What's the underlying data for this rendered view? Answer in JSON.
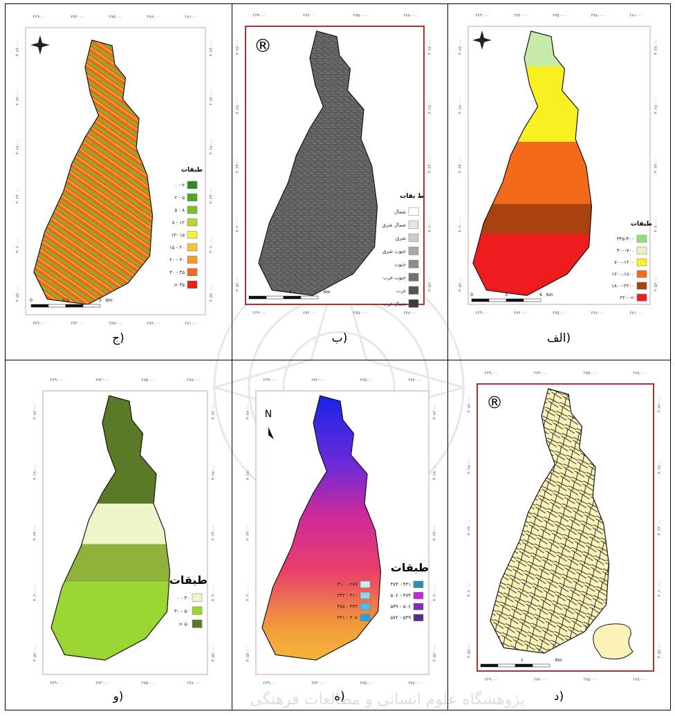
{
  "panels": [
    {
      "caption": "ج)",
      "legend_title": "طبقات",
      "legend": [
        {
          "label": "۰ - ۲",
          "color": "#2e8b22"
        },
        {
          "label": "۲ - ۵",
          "color": "#52a52a"
        },
        {
          "label": "۵ - ۸",
          "color": "#7cbd2e"
        },
        {
          "label": "۸ - ۱۲",
          "color": "#b6d934"
        },
        {
          "label": "۱۲- ۱۵",
          "color": "#f2f23a"
        },
        {
          "label": "۱۵ - ۲۰",
          "color": "#f6c23a"
        },
        {
          "label": "۲۰ - ۳۰",
          "color": "#f59a2c"
        },
        {
          "label": "۳۰ - ۴۵",
          "color": "#f06a22"
        },
        {
          "label": "> ۴۵",
          "color": "#e8201c"
        }
      ],
      "x_ticks": [
        "۲۶۹۰۰۰",
        "۲۷۲۰۰۰",
        "۲۷۵۰۰۰",
        "۲۷۸۰۰۰",
        "۲۸۱۰۰۰"
      ],
      "y_ticks": [
        "۴۰۵۶۰۰۰",
        "۴۰۶۰۰۰۰",
        "۴۰۶۴۰۰۰",
        "۴۰۶۸۰۰۰",
        "۴۰۷۲۰۰۰",
        "۴۰۷۶۰۰۰"
      ],
      "scale": [
        "0",
        "2.5",
        "5",
        "Km"
      ]
    },
    {
      "caption": "ب)",
      "symbol": "®",
      "legend_title": "ط بقات",
      "legend": [
        {
          "label": "شمال",
          "color": "#ffffff"
        },
        {
          "label": "شمال شرق",
          "color": "#e6e6e6"
        },
        {
          "label": "شرق",
          "color": "#cccccc"
        },
        {
          "label": "جنوب شرق",
          "color": "#a8a8a8"
        },
        {
          "label": "جنوب",
          "color": "#8c8c8c"
        },
        {
          "label": "جنوب غرب",
          "color": "#707070"
        },
        {
          "label": "غرب",
          "color": "#555555"
        },
        {
          "label": "شمال غرب",
          "color": "#3c3c3c"
        }
      ],
      "x_ticks": [
        "۲۶۹۰۰۰",
        "۲۷۲۰۰۰",
        "۲۷۵۰۰۰",
        "۲۷۸۰۰۰"
      ],
      "y_ticks": [
        "۴۰۵۶۰۰۰",
        "۴۰۶۰۰۰۰",
        "۴۰۶۴۰۰۰",
        "۴۰۶۸۰۰۰",
        "۴۰۷۲۰۰۰"
      ],
      "scale": [
        "۶",
        "Km"
      ]
    },
    {
      "caption": "الف)",
      "legend_title": "طبقات",
      "legend": [
        {
          "label": "۳۳۵-۴۰۰",
          "color": "#8fe07a"
        },
        {
          "label": "۴۰۰-۷۰۰",
          "color": "#e6f5c0"
        },
        {
          "label": "۷۰۰-۱۲۰۰",
          "color": "#f8f020"
        },
        {
          "label": "۱۲۰۰-۱۸۰۰",
          "color": "#f26a1a"
        },
        {
          "label": "۱۸۰۰-۲۲۰۰",
          "color": "#a8420e"
        },
        {
          "label": "۲۲۰۰<",
          "color": "#ee1c1c"
        }
      ],
      "x_ticks": [
        "۲۶۹۰۰۰",
        "۲۷۲۰۰۰",
        "۲۷۵۰۰۰",
        "۲۷۸۰۰۰",
        "۲۸۱۰۰۰"
      ],
      "y_ticks": [
        "۴۰۵۶۰۰۰",
        "۴۰۶۰۰۰۰",
        "۴۰۶۴۰۰۰",
        "۴۰۶۸۰۰۰",
        "۴۰۷۲۰۰۰"
      ],
      "scale": [
        "0",
        "3",
        "6",
        "Km"
      ]
    },
    {
      "caption": "و)",
      "legend_title": "طبقات",
      "legend": [
        {
          "label": "۰ - ۳۰",
          "color": "#eef5c8"
        },
        {
          "label": "۳۰ - ۵۰",
          "color": "#9ad632"
        },
        {
          "label": "> ۵۰",
          "color": "#5a7a28"
        }
      ],
      "x_ticks": [
        "۲۶۹۰۰۰",
        "۲۷۲۰۰۰",
        "۲۷۵۰۰۰",
        "۲۷۸۰۰۰"
      ],
      "y_ticks": [
        "۴۰۵۶۰۰۰",
        "۴۰۶۰۰۰۰",
        "۴۰۶۴۰۰۰",
        "۴۰۶۸۰۰۰",
        "۴۰۷۲۰۰۰"
      ]
    },
    {
      "caption": "ه)",
      "symbol": "N",
      "legend_title": "طبقات",
      "legend": [
        {
          "label": "۳۱۰ - ۲۷۷",
          "color": "#cfe8f8"
        },
        {
          "label": "۳۴۳ - ۳۱۰",
          "color": "#8fd4f2"
        },
        {
          "label": "۳۷۵ - ۳۴۳",
          "color": "#4cc0ec"
        },
        {
          "label": "۴۴۱ - ۴۰۸",
          "color": "#1fa6e0"
        },
        {
          "label": "۴۷۴ - ۴۴۱",
          "color": "#2a8fb0"
        },
        {
          "label": "۵۰۶ - ۴۷۴",
          "color": "#c02ad8"
        },
        {
          "label": "۵۳۹ - ۵۰۶",
          "color": "#8a2ab8"
        },
        {
          "label": "۵۷۲ - ۵۳۹",
          "color": "#5a2a8a"
        }
      ],
      "x_ticks": [
        "۲۶۹۰۰۰",
        "۲۷۲۰۰۰",
        "۲۷۵۰۰۰",
        "۲۷۸۰۰۰"
      ],
      "y_ticks": [
        "۴۰۵۶۰۰۰",
        "۴۰۶۰۰۰۰",
        "۴۰۶۴۰۰۰",
        "۴۰۶۸۰۰۰",
        "۴۰۷۲۰۰۰"
      ]
    },
    {
      "caption": "د)",
      "symbol": "®",
      "x_ticks": [
        "۲۶۹۰۰۰",
        "۲۷۲۰۰۰",
        "۲۷۵۰۰۰",
        "۲۷۸۰۰۰"
      ],
      "y_ticks": [
        "۴۰۵۶۰۰۰",
        "۴۰۶۰۰۰۰",
        "۴۰۶۴۰۰۰",
        "۴۰۶۸۰۰۰",
        "۴۰۷۲۰۰۰"
      ],
      "scale": [
        "۶",
        "Km"
      ]
    }
  ],
  "watermark": "پژوهشگاه علوم انسانی و مطالعات فرهنگی"
}
